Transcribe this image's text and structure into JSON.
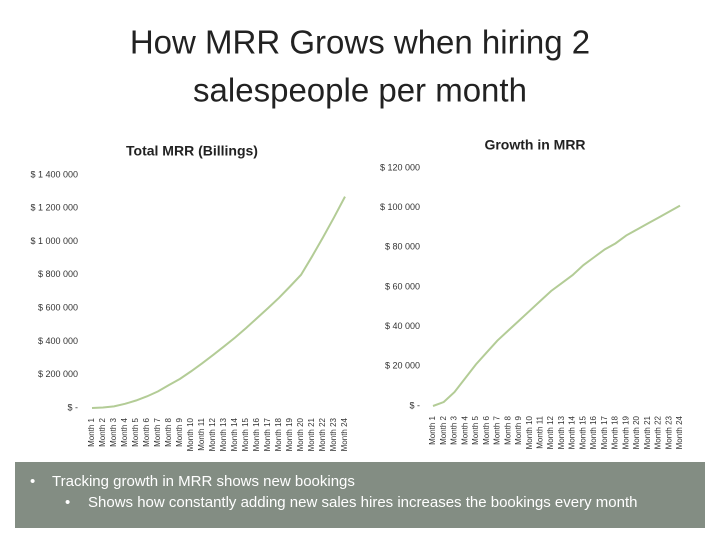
{
  "title": "How MRR Grows when hiring 2 salespeople per month",
  "bullets": {
    "main": "Tracking growth in MRR shows new bookings",
    "sub": "Shows how constantly adding new sales hires increases the bookings every month"
  },
  "chart_data": [
    {
      "type": "line",
      "title": "Total MRR (Billings)",
      "categories": [
        "Month 1",
        "Month 2",
        "Month 3",
        "Month 4",
        "Month 5",
        "Month 6",
        "Month 7",
        "Month 8",
        "Month 9",
        "Month 10",
        "Month 11",
        "Month 12",
        "Month 13",
        "Month 14",
        "Month 15",
        "Month 16",
        "Month 17",
        "Month 18",
        "Month 19",
        "Month 20",
        "Month 21",
        "Month 22",
        "Month 23",
        "Month 24"
      ],
      "values": [
        0,
        3000,
        10000,
        25000,
        45000,
        70000,
        100000,
        138000,
        175000,
        220000,
        268000,
        318000,
        370000,
        423000,
        480000,
        540000,
        600000,
        662000,
        730000,
        800000,
        910000,
        1025000,
        1145000,
        1270000
      ],
      "color": "#b3cc96",
      "ylim": [
        0,
        1400000
      ],
      "yticks": [
        {
          "value": 0,
          "label": "$ -"
        },
        {
          "value": 200000,
          "label": "$ 200 000"
        },
        {
          "value": 400000,
          "label": "$ 400 000"
        },
        {
          "value": 600000,
          "label": "$ 600 000"
        },
        {
          "value": 800000,
          "label": "$ 800 000"
        },
        {
          "value": 1000000,
          "label": "$ 1 000 000"
        },
        {
          "value": 1200000,
          "label": "$ 1 200 000"
        },
        {
          "value": 1400000,
          "label": "$ 1 400 000"
        }
      ]
    },
    {
      "type": "line",
      "title": "Growth in MRR",
      "categories": [
        "Month 1",
        "Month 2",
        "Month 3",
        "Month 4",
        "Month 5",
        "Month 6",
        "Month 7",
        "Month 8",
        "Month 9",
        "Month 10",
        "Month 11",
        "Month 12",
        "Month 13",
        "Month 14",
        "Month 15",
        "Month 16",
        "Month 17",
        "Month 18",
        "Month 19",
        "Month 20",
        "Month 21",
        "Month 22",
        "Month 23",
        "Month 24"
      ],
      "values": [
        0,
        2000,
        7000,
        14000,
        21000,
        27000,
        33000,
        38000,
        43000,
        48000,
        53000,
        58000,
        62000,
        66000,
        71000,
        75000,
        79000,
        82000,
        86000,
        89000,
        92000,
        95000,
        98000,
        101000
      ],
      "color": "#b3cc96",
      "ylim": [
        0,
        120000
      ],
      "yticks": [
        {
          "value": 0,
          "label": "$ -"
        },
        {
          "value": 20000,
          "label": "$ 20 000"
        },
        {
          "value": 40000,
          "label": "$ 40 000"
        },
        {
          "value": 60000,
          "label": "$ 60 000"
        },
        {
          "value": 80000,
          "label": "$ 80 000"
        },
        {
          "value": 100000,
          "label": "$ 100 000"
        },
        {
          "value": 120000,
          "label": "$ 120 000"
        }
      ]
    }
  ]
}
